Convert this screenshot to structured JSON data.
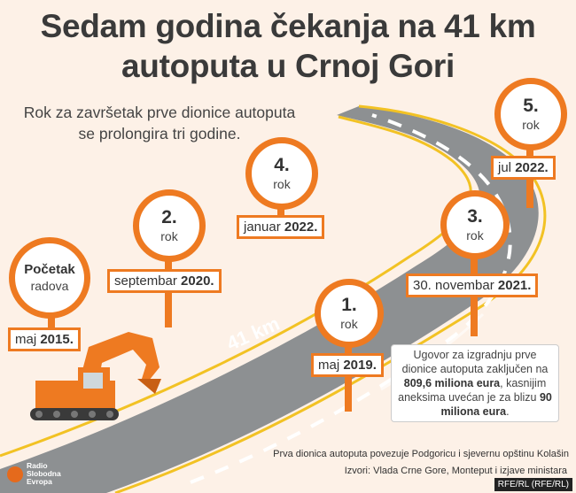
{
  "title_line1": "Sedam godina čekanja na 41 km",
  "title_line2": "autoputa u Crnoj Gori",
  "subtitle_line1": "Rok za završetak prve dionice autoputa",
  "subtitle_line2": "se prolongira tri godine.",
  "road_label": "41 km",
  "milestones": [
    {
      "line1": "Početak",
      "line2": "radova",
      "date_prefix": "maj",
      "date_bold": "2015."
    },
    {
      "line1": "1.",
      "line2": "rok",
      "date_prefix": "maj",
      "date_bold": "2019."
    },
    {
      "line1": "2.",
      "line2": "rok",
      "date_prefix": "septembar",
      "date_bold": "2020."
    },
    {
      "line1": "3.",
      "line2": "rok",
      "date_prefix": "30. novembar",
      "date_bold": "2021."
    },
    {
      "line1": "4.",
      "line2": "rok",
      "date_prefix": "januar",
      "date_bold": "2022."
    },
    {
      "line1": "5.",
      "line2": "rok",
      "date_prefix": "jul",
      "date_bold": "2022."
    }
  ],
  "note": {
    "text1": "Ugovor za izgradnju prve dionice autoputa zaključen na",
    "bold1": "809,6 miliona eura",
    "text2": ", kasnijim aneksima uvećan je za blizu",
    "bold2": "90 miliona eura",
    "text3": "."
  },
  "footer_line1": "Prva dionica autoputa povezuje Podgoricu i sjevernu opštinu Kolašin",
  "footer_line2": "Izvori: Vlada Crne Gore, Monteput i izjave ministara",
  "logo_text": "Radio Slobodna Evropa",
  "credit": "RFE/RL (RFE/RL)",
  "colors": {
    "accent": "#ee7a21",
    "road": "#8d9092",
    "stripe": "#f2c224",
    "background": "#fdf1e7"
  }
}
